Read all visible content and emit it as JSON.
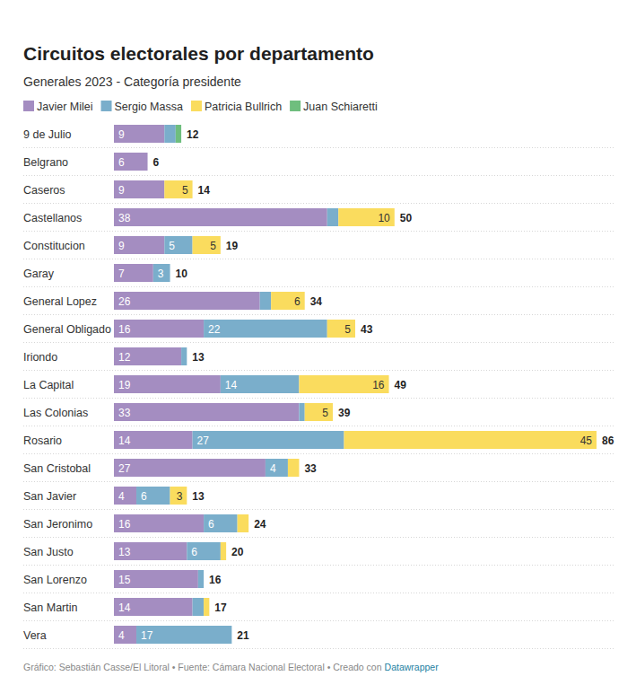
{
  "chart_data": {
    "type": "bar",
    "orientation": "horizontal",
    "stacked": true,
    "data_labels": true,
    "tick_labels": "y",
    "grid": false,
    "legend": "top-left",
    "title": "Circuitos electorales por departamento",
    "subtitle": "Generales 2023 - Categoría presidente",
    "categories": [
      "9 de Julio",
      "Belgrano",
      "Caseros",
      "Castellanos",
      "Constitucion",
      "Garay",
      "General Lopez",
      "General Obligado",
      "Iriondo",
      "La Capital",
      "Las Colonias",
      "Rosario",
      "San Cristobal",
      "San Javier",
      "San Jeronimo",
      "San Justo",
      "San Lorenzo",
      "San Martin",
      "Vera"
    ],
    "series": [
      {
        "name": "Javier Milei",
        "color": "#a48dc1",
        "values": [
          9,
          6,
          9,
          38,
          9,
          7,
          26,
          16,
          12,
          19,
          33,
          14,
          27,
          4,
          16,
          13,
          15,
          14,
          4
        ]
      },
      {
        "name": "Sergio Massa",
        "color": "#7aaecb",
        "values": [
          2,
          0,
          0,
          2,
          5,
          3,
          2,
          22,
          1,
          14,
          1,
          27,
          4,
          6,
          6,
          6,
          1,
          2,
          17
        ]
      },
      {
        "name": "Patricia Bullrich",
        "color": "#fadc5e",
        "values": [
          0,
          0,
          5,
          10,
          5,
          0,
          6,
          5,
          0,
          16,
          5,
          45,
          2,
          3,
          2,
          1,
          0,
          1,
          0
        ]
      },
      {
        "name": "Juan Schiaretti",
        "color": "#6fbe7e",
        "values": [
          1,
          0,
          0,
          0,
          0,
          0,
          0,
          0,
          0,
          0,
          0,
          0,
          0,
          0,
          0,
          0,
          0,
          0,
          0
        ]
      }
    ],
    "totals": [
      12,
      6,
      14,
      50,
      19,
      10,
      34,
      43,
      13,
      49,
      39,
      86,
      33,
      13,
      24,
      20,
      16,
      17,
      21
    ],
    "xlim": [
      0,
      86
    ],
    "footer": "Gráfico: Sebastián Casse/El Litoral • Fuente: Cámara Nacional Electoral • Creado con",
    "footer_link": "Datawrapper"
  }
}
